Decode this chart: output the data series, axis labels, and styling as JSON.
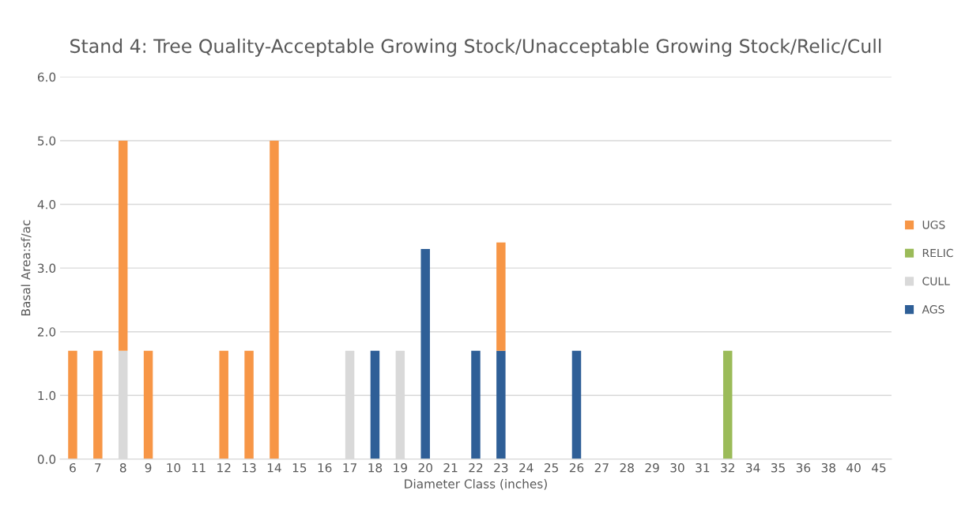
{
  "chart_data": {
    "type": "bar",
    "stacked": true,
    "title": "Stand 4: Tree Quality-Acceptable Growing Stock/Unacceptable Growing Stock/Relic/Cull",
    "xlabel": "Diameter Class (inches)",
    "ylabel": "Basal Area:sf/ac",
    "categories": [
      "6",
      "7",
      "8",
      "9",
      "10",
      "11",
      "12",
      "13",
      "14",
      "15",
      "16",
      "17",
      "18",
      "19",
      "20",
      "21",
      "22",
      "23",
      "24",
      "25",
      "26",
      "27",
      "28",
      "29",
      "30",
      "31",
      "32",
      "34",
      "35",
      "36",
      "38",
      "40",
      "45"
    ],
    "series": [
      {
        "name": "AGS",
        "color": "#2f5f97",
        "values": [
          0,
          0,
          0,
          0,
          0,
          0,
          0,
          0,
          0,
          0,
          0,
          0,
          1.7,
          0,
          3.3,
          0,
          1.7,
          1.7,
          0,
          0,
          1.7,
          0,
          0,
          0,
          0,
          0,
          0,
          0,
          0,
          0,
          0,
          0,
          0
        ]
      },
      {
        "name": "CULL",
        "color": "#d9d9d9",
        "values": [
          0,
          0,
          1.7,
          0,
          0,
          0,
          0,
          0,
          0,
          0,
          0,
          1.7,
          0,
          1.7,
          0,
          0,
          0,
          0,
          0,
          0,
          0,
          0,
          0,
          0,
          0,
          0,
          0,
          0,
          0,
          0,
          0,
          0,
          0
        ]
      },
      {
        "name": "RELIC",
        "color": "#9bbb59",
        "values": [
          0,
          0,
          0,
          0,
          0,
          0,
          0,
          0,
          0,
          0,
          0,
          0,
          0,
          0,
          0,
          0,
          0,
          0,
          0,
          0,
          0,
          0,
          0,
          0,
          0,
          0,
          1.7,
          0,
          0,
          0,
          0,
          0,
          0
        ]
      },
      {
        "name": "UGS",
        "color": "#f79646",
        "values": [
          1.7,
          1.7,
          3.3,
          1.7,
          0,
          0,
          1.7,
          1.7,
          5.0,
          0,
          0,
          0,
          0,
          0,
          0,
          0,
          0,
          1.7,
          0,
          0,
          0,
          0,
          0,
          0,
          0,
          0,
          0,
          0,
          0,
          0,
          0,
          0,
          0
        ]
      }
    ],
    "ylim": [
      0,
      6
    ],
    "yticks": [
      {
        "value": 0,
        "label": "0.0"
      },
      {
        "value": 1,
        "label": "1.0"
      },
      {
        "value": 2,
        "label": "2.0"
      },
      {
        "value": 3,
        "label": "3.0"
      },
      {
        "value": 4,
        "label": "4.0"
      },
      {
        "value": 5,
        "label": "5.0"
      },
      {
        "value": 6,
        "label": "6.0"
      }
    ],
    "grid": "y",
    "legend": "right"
  }
}
